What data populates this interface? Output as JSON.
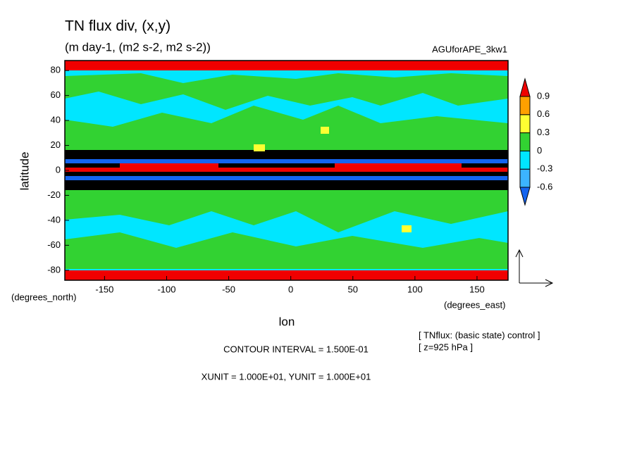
{
  "chart_data": {
    "type": "contour",
    "title": "TN flux div, (x,y)",
    "subtitle": "(m day-1, (m2 s-2, m2 s-2))",
    "dataset": "AGUforAPE_3kw1",
    "x_label": "lon",
    "y_label": "latitude",
    "x_unit": "(degrees_east)",
    "y_unit": "(degrees_north)",
    "xlim": [
      -182,
      175
    ],
    "xticks": [
      -150,
      -100,
      -50,
      0,
      50,
      100,
      150
    ],
    "ylim": [
      -88,
      88
    ],
    "yticks": [
      -80,
      -60,
      -40,
      -20,
      0,
      20,
      40,
      60,
      80
    ],
    "colorbar": {
      "levels": [
        -0.6,
        -0.3,
        0,
        0.3,
        0.6,
        0.9
      ],
      "colors": [
        "#1464f0",
        "#3cb4ff",
        "#00e6ff",
        "#32d232",
        "#ffff32",
        "#ffa000",
        "#f00000"
      ]
    },
    "notes": [
      "CONTOUR INTERVAL = 1.500E-01",
      "XUNIT = 1.000E+01, YUNIT = 1.000E+01"
    ],
    "info": [
      "[ TNflux: (basic state) control ]",
      "[ z=925 hPa ]"
    ]
  }
}
